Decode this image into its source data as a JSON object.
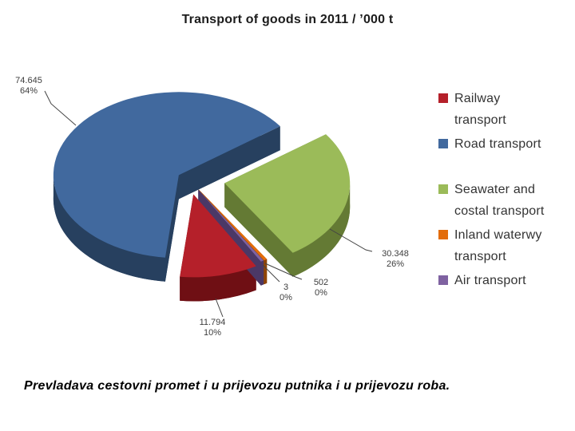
{
  "slide": {
    "title": "Transport of goods in 2011 / ’000 t",
    "caption": "Prevladava cestovni promet i u prijevozu putnika i u prijevozu roba."
  },
  "chart_data": {
    "type": "pie",
    "title": "Transport of goods in 2011 / ’000 t",
    "unit": "'000 t",
    "effect": "3d-exploded",
    "legend_position": "right",
    "slices": [
      {
        "name": "Railway transport",
        "value": 11794,
        "display_value": "11.794",
        "percent_label": "10%",
        "color": "#b5202a",
        "dark": "#6f0f14"
      },
      {
        "name": "Road transport",
        "value": 74645,
        "display_value": "74.645",
        "percent_label": "64%",
        "color": "#41699e",
        "dark": "#27405f"
      },
      {
        "name": "Seawater and costal transport",
        "value": 30348,
        "display_value": "30.348",
        "percent_label": "26%",
        "color": "#9bbb59",
        "dark": "#647a34"
      },
      {
        "name": "Inland waterwy transport",
        "value": 502,
        "display_value": "502",
        "percent_label": "0%",
        "color": "#e36c0a",
        "dark": "#8f4406"
      },
      {
        "name": "Air transport",
        "value": 3,
        "display_value": "3",
        "percent_label": "0%",
        "color": "#7f62a1",
        "dark": "#4b3866"
      }
    ]
  },
  "legend": {
    "items": [
      {
        "label": "Railway\ntransport"
      },
      {
        "label": "Road transport"
      },
      {
        "label": "Seawater and\ncostal transport"
      },
      {
        "label": "Inland waterwy\ntransport"
      },
      {
        "label": "Air transport"
      }
    ]
  }
}
